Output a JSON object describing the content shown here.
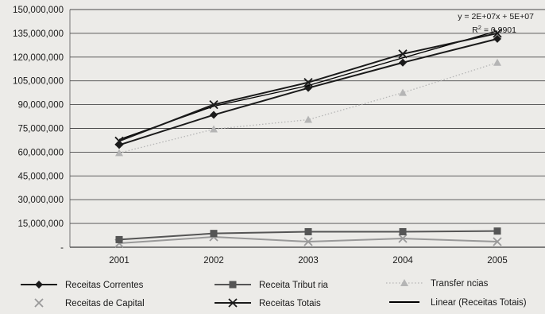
{
  "chart_data": {
    "type": "line",
    "title": "",
    "xlabel": "",
    "ylabel": "",
    "categories": [
      "2001",
      "2002",
      "2003",
      "2004",
      "2005"
    ],
    "ylim": [
      0,
      150000000
    ],
    "y_ticks": [
      {
        "value": 0,
        "label": "-"
      },
      {
        "value": 15000000,
        "label": "15,000,000"
      },
      {
        "value": 30000000,
        "label": "30,000,000"
      },
      {
        "value": 45000000,
        "label": "45,000,000"
      },
      {
        "value": 60000000,
        "label": "60,000,000"
      },
      {
        "value": 75000000,
        "label": "75,000,000"
      },
      {
        "value": 90000000,
        "label": "90,000,000"
      },
      {
        "value": 105000000,
        "label": "105,000,000"
      },
      {
        "value": 120000000,
        "label": "120,000,000"
      },
      {
        "value": 135000000,
        "label": "135,000,000"
      },
      {
        "value": 150000000,
        "label": "150,000,000"
      }
    ],
    "grid": "horizontal",
    "legend_position": "bottom",
    "series": [
      {
        "name": "Receitas Correntes",
        "values": [
          64500000,
          83500000,
          100500000,
          116500000,
          131500000
        ],
        "marker": "diamond",
        "line": "solid",
        "color": "#1a1a1a"
      },
      {
        "name": "Receita Tribut   ria",
        "values": [
          4800000,
          8700000,
          9800000,
          9800000,
          10200000
        ],
        "marker": "square",
        "line": "solid",
        "color": "#555555"
      },
      {
        "name": "Transfer   ncias",
        "values": [
          59500000,
          74500000,
          80500000,
          97500000,
          116500000
        ],
        "marker": "triangle",
        "line": "dotted",
        "color": "#b5b5b5"
      },
      {
        "name": "Receitas de Capital",
        "values": [
          2500000,
          6500000,
          3500000,
          5500000,
          3500000
        ],
        "marker": "x",
        "line": "solid",
        "color": "#999999"
      },
      {
        "name": "Receitas Totais",
        "values": [
          67000000,
          90000000,
          104000000,
          122000000,
          135000000
        ],
        "marker": "x",
        "line": "solid",
        "color": "#1a1a1a"
      },
      {
        "name": "Linear (Receitas Totais)",
        "values": [
          68000000,
          89000000,
          102000000,
          119500000,
          136500000
        ],
        "marker": "none",
        "line": "solid",
        "color": "#000000"
      }
    ],
    "annotations": {
      "equation": "y = 2E+07x + 5E+07",
      "r2_label": "R",
      "r2_sup": "2",
      "r2_value": " = 0.9901"
    }
  }
}
